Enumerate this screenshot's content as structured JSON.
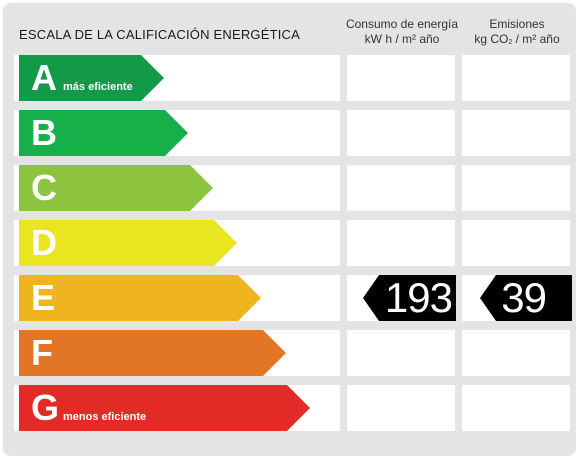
{
  "header": {
    "scale_title": "ESCALA DE LA CALIFICACIÓN ENERGÉTICA",
    "energy_title": "Consumo de energía",
    "energy_unit": "kW h  / m² año",
    "emissions_title": "Emisiones",
    "emissions_unit_prefix": "kg CO",
    "emissions_unit_sub": "2",
    "emissions_unit_suffix": "  / m² año"
  },
  "rows": [
    {
      "letter": "A",
      "sublabel": "más eficiente",
      "color": "#129a48"
    },
    {
      "letter": "B",
      "sublabel": "",
      "color": "#15b04a"
    },
    {
      "letter": "C",
      "sublabel": "",
      "color": "#8cc43f"
    },
    {
      "letter": "D",
      "sublabel": "",
      "color": "#eae521"
    },
    {
      "letter": "E",
      "sublabel": "",
      "color": "#efb420"
    },
    {
      "letter": "F",
      "sublabel": "",
      "color": "#e27526"
    },
    {
      "letter": "G",
      "sublabel": "menos eficiente",
      "color": "#e22b26"
    }
  ],
  "rating": {
    "row_letter": "E",
    "energy_value": "193",
    "emissions_value": "39"
  }
}
